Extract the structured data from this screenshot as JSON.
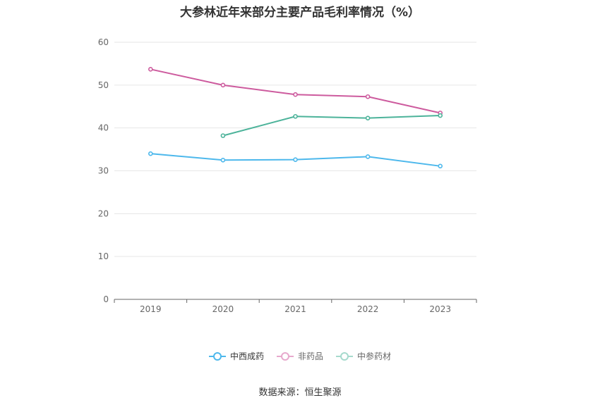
{
  "chart_data": {
    "type": "line",
    "title": "大参林近年来部分主要产品毛利率情况（%）",
    "categories": [
      "2019",
      "2020",
      "2021",
      "2022",
      "2023"
    ],
    "ylim": [
      0,
      60
    ],
    "yticks": [
      0,
      10,
      20,
      30,
      40,
      50,
      60
    ],
    "grid": true,
    "legend_position": "bottom",
    "series": [
      {
        "name": "中西成药",
        "color": "#4db8ec",
        "values": [
          34.0,
          32.5,
          32.6,
          33.3,
          31.1
        ]
      },
      {
        "name": "非药品",
        "color": "#cd5b9e",
        "values": [
          53.7,
          50.0,
          47.8,
          47.3,
          43.5
        ]
      },
      {
        "name": "中参药材",
        "color": "#4cb39a",
        "values": [
          null,
          38.2,
          42.7,
          42.3,
          42.9
        ]
      }
    ]
  },
  "source": "数据来源：恒生聚源"
}
